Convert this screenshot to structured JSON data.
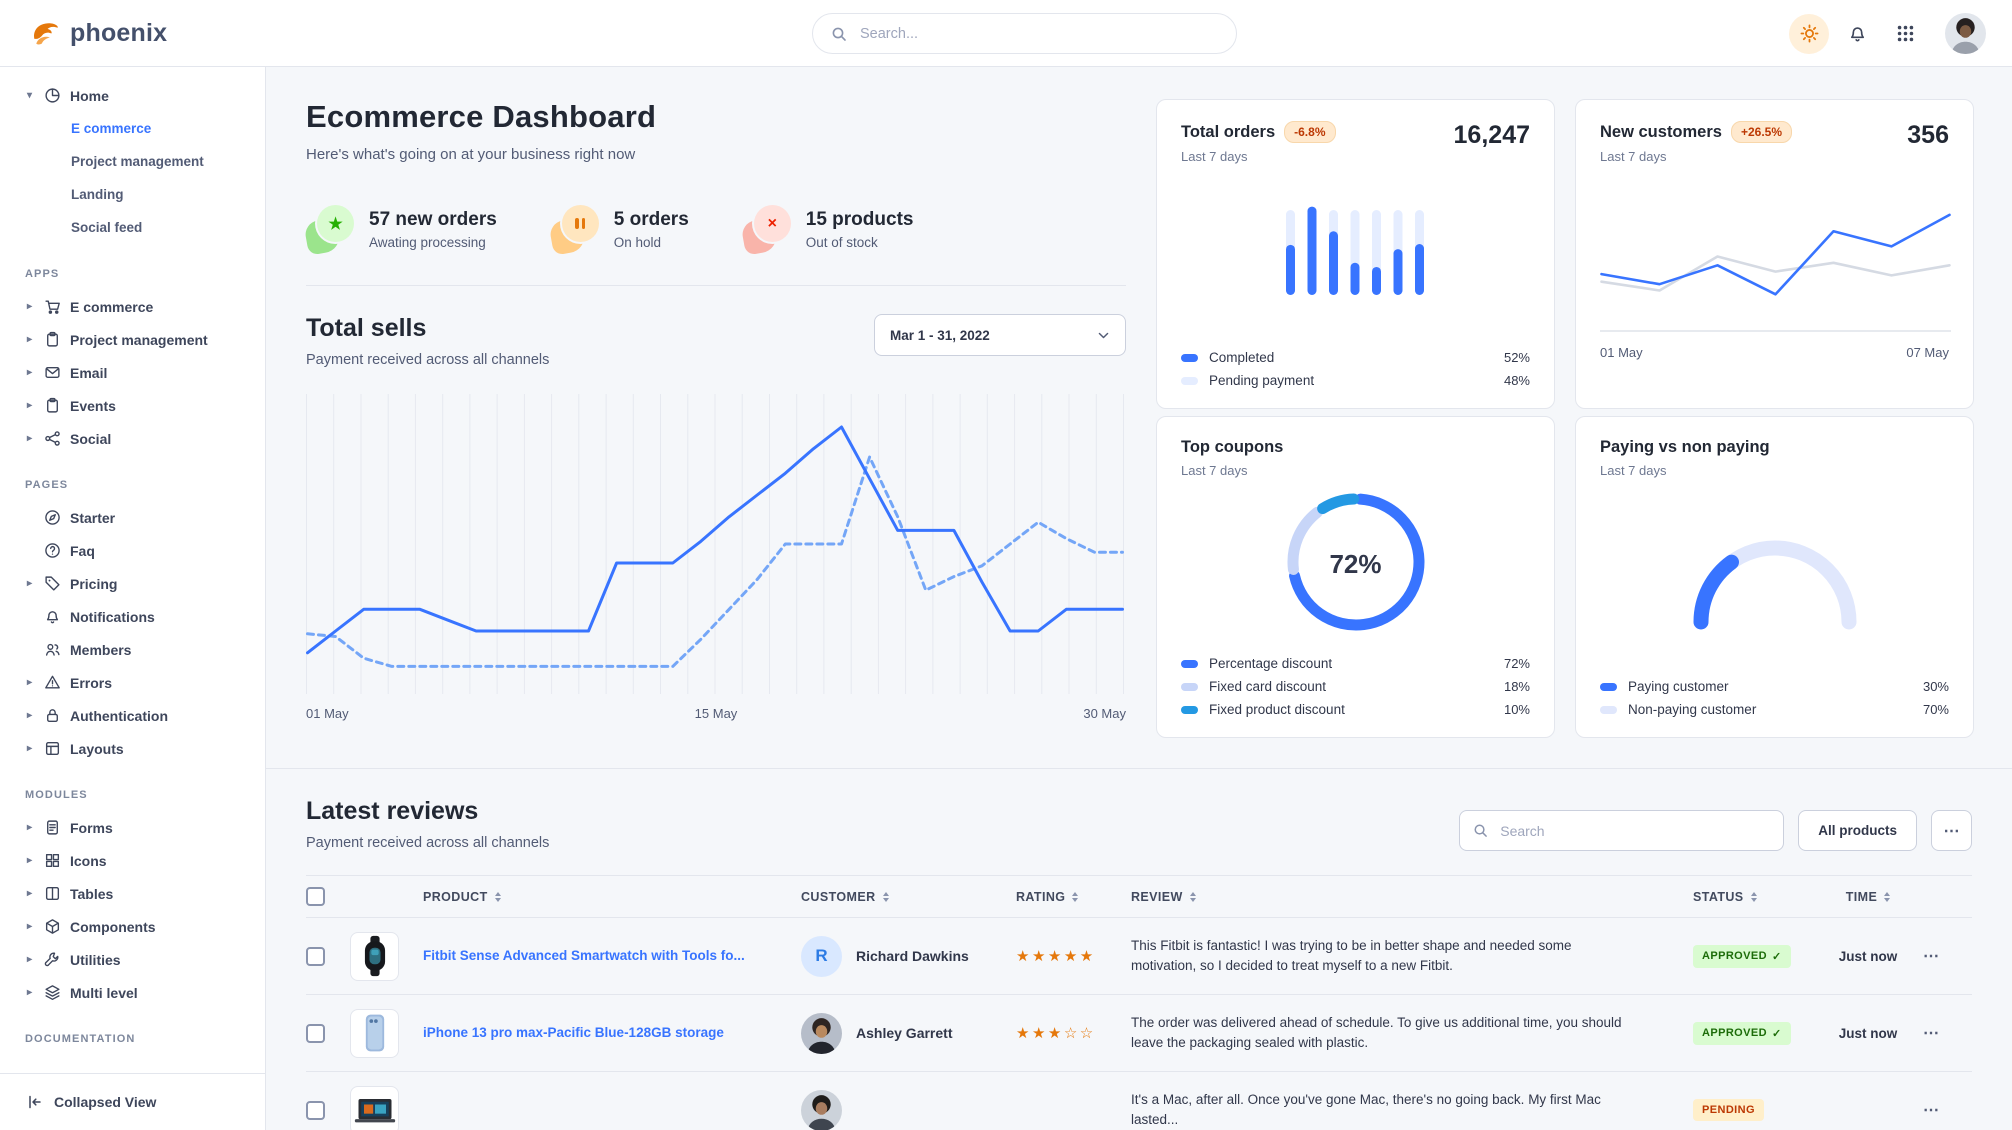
{
  "brand": "phoenix",
  "topnav": {
    "search_placeholder": "Search..."
  },
  "sidebar": {
    "sections": [
      {
        "label": "",
        "items": [
          {
            "label": "Home",
            "icon": "pie-chart",
            "caret": "down",
            "children": [
              {
                "label": "E commerce",
                "active": true
              },
              {
                "label": "Project management",
                "active": false
              },
              {
                "label": "Landing",
                "active": false
              },
              {
                "label": "Social feed",
                "active": false
              }
            ]
          }
        ]
      },
      {
        "label": "APPS",
        "items": [
          {
            "label": "E commerce",
            "icon": "cart",
            "caret": "right"
          },
          {
            "label": "Project management",
            "icon": "clipboard",
            "caret": "right"
          },
          {
            "label": "Email",
            "icon": "mail",
            "caret": "right"
          },
          {
            "label": "Events",
            "icon": "clipboard",
            "caret": "right"
          },
          {
            "label": "Social",
            "icon": "share",
            "caret": "right"
          }
        ]
      },
      {
        "label": "PAGES",
        "items": [
          {
            "label": "Starter",
            "icon": "compass",
            "caret": ""
          },
          {
            "label": "Faq",
            "icon": "help",
            "caret": ""
          },
          {
            "label": "Pricing",
            "icon": "tag",
            "caret": "right"
          },
          {
            "label": "Notifications",
            "icon": "bell",
            "caret": ""
          },
          {
            "label": "Members",
            "icon": "users",
            "caret": ""
          },
          {
            "label": "Errors",
            "icon": "alert",
            "caret": "right"
          },
          {
            "label": "Authentication",
            "icon": "lock",
            "caret": "right"
          },
          {
            "label": "Layouts",
            "icon": "layout",
            "caret": "right"
          }
        ]
      },
      {
        "label": "MODULES",
        "items": [
          {
            "label": "Forms",
            "icon": "file",
            "caret": "right"
          },
          {
            "label": "Icons",
            "icon": "grid",
            "caret": "right"
          },
          {
            "label": "Tables",
            "icon": "columns",
            "caret": "right"
          },
          {
            "label": "Components",
            "icon": "package",
            "caret": "right"
          },
          {
            "label": "Utilities",
            "icon": "tool",
            "caret": "right"
          },
          {
            "label": "Multi level",
            "icon": "layers",
            "caret": "right"
          }
        ]
      },
      {
        "label": "DOCUMENTATION",
        "items": []
      }
    ],
    "footer_label": "Collapsed View"
  },
  "page_header": {
    "title": "Ecommerce Dashboard",
    "subtitle": "Here's what's going on at your business right now"
  },
  "stats": [
    {
      "title": "57 new orders",
      "subtitle": "Awating processing",
      "icon": "star",
      "accent": "#25b003",
      "icon_bg": "#d9fbd0",
      "blob": "#9be48c"
    },
    {
      "title": "5 orders",
      "subtitle": "On hold",
      "icon": "pause",
      "accent": "#e5780b",
      "icon_bg": "#ffe6bf",
      "blob": "#ffcc85"
    },
    {
      "title": "15 products",
      "subtitle": "Out of stock",
      "icon": "x",
      "accent": "#ed2000",
      "icon_bg": "#ffe0db",
      "blob": "#f9b4aa"
    }
  ],
  "total_sells": {
    "title": "Total sells",
    "subtitle": "Payment received across all channels",
    "date_range": "Mar 1 - 31, 2022"
  },
  "cards": {
    "total_orders": {
      "title": "Total orders",
      "badge": "-6.8%",
      "period": "Last 7 days",
      "value": "16,247",
      "legend": [
        {
          "label": "Completed",
          "value": "52%",
          "color": "#3874ff"
        },
        {
          "label": "Pending payment",
          "value": "48%",
          "color": "#e5edff"
        }
      ]
    },
    "new_customers": {
      "title": "New customers",
      "badge": "+26.5%",
      "period": "Last 7 days",
      "value": "356",
      "x_labels": [
        "01 May",
        "07 May"
      ]
    },
    "top_coupons": {
      "title": "Top coupons",
      "period": "Last 7 days",
      "center_label": "72%",
      "legend": [
        {
          "label": "Percentage discount",
          "value": "72%",
          "color": "#3874ff"
        },
        {
          "label": "Fixed card discount",
          "value": "18%",
          "color": "#c7d5f8"
        },
        {
          "label": "Fixed product discount",
          "value": "10%",
          "color": "#2499e3"
        }
      ]
    },
    "paying": {
      "title": "Paying vs non paying",
      "period": "Last 7 days",
      "legend": [
        {
          "label": "Paying customer",
          "value": "30%",
          "color": "#3874ff"
        },
        {
          "label": "Non-paying customer",
          "value": "70%",
          "color": "#e0e7fc"
        }
      ]
    }
  },
  "chart_data": [
    {
      "id": "total-sells",
      "type": "line",
      "ylim": [
        0,
        100
      ],
      "grid": "vertical",
      "x_axis": {
        "labels": [
          "01 May",
          "15 May",
          "30 May"
        ],
        "days": 30
      },
      "series": [
        {
          "name": "current",
          "style": "solid",
          "color": "#3874ff",
          "values": [
            10,
            18,
            26,
            26,
            26,
            22,
            18,
            18,
            18,
            18,
            18,
            43,
            43,
            43,
            51,
            60,
            68,
            76,
            85,
            93,
            74,
            55,
            55,
            55,
            36,
            18,
            18,
            26,
            26,
            26
          ]
        },
        {
          "name": "previous",
          "style": "dashed",
          "color": "#74a6f7",
          "values": [
            17,
            16,
            8,
            5,
            5,
            5,
            5,
            5,
            5,
            5,
            5,
            5,
            5,
            5,
            15,
            26,
            37,
            50,
            50,
            50,
            82,
            60,
            33,
            38,
            42,
            50,
            58,
            52,
            47,
            47
          ]
        }
      ]
    },
    {
      "id": "total-orders",
      "type": "bar",
      "stacked": true,
      "categories": [
        "1",
        "2",
        "3",
        "4",
        "5",
        "6",
        "7"
      ],
      "series": [
        {
          "name": "Completed",
          "color": "#3874ff",
          "values": [
            59,
            104,
            75,
            38,
            33,
            54,
            60
          ]
        },
        {
          "name": "Pending payment",
          "color": "#e5edff",
          "values": [
            41,
            0,
            25,
            62,
            67,
            46,
            40
          ]
        }
      ]
    },
    {
      "id": "new-customers",
      "type": "line",
      "x_axis": {
        "labels": [
          "01 May",
          "07 May"
        ]
      },
      "series": [
        {
          "name": "current",
          "style": "solid",
          "color": "#3874ff",
          "values": [
            38,
            30,
            45,
            22,
            72,
            60,
            85
          ]
        },
        {
          "name": "previous",
          "style": "solid",
          "color": "#d5dae3",
          "values": [
            32,
            25,
            52,
            40,
            47,
            37,
            45
          ]
        }
      ]
    },
    {
      "id": "top-coupons",
      "type": "pie",
      "donut": true,
      "center_label": "72%",
      "slices": [
        {
          "label": "Percentage discount",
          "value": 72,
          "color": "#3874ff"
        },
        {
          "label": "Fixed card discount",
          "value": 18,
          "color": "#c7d5f8"
        },
        {
          "label": "Fixed product discount",
          "value": 10,
          "color": "#2499e3"
        }
      ]
    },
    {
      "id": "paying-gauge",
      "type": "gauge",
      "slices": [
        {
          "label": "Paying customer",
          "value": 30,
          "color": "#3874ff"
        },
        {
          "label": "Non-paying customer",
          "value": 70,
          "color": "#e0e7fc"
        }
      ]
    }
  ],
  "reviews": {
    "title": "Latest reviews",
    "subtitle": "Payment received across all channels",
    "search_placeholder": "Search",
    "all_products_label": "All products",
    "more_label": "⋯",
    "columns": [
      "PRODUCT",
      "CUSTOMER",
      "RATING",
      "REVIEW",
      "STATUS",
      "TIME"
    ],
    "rows": [
      {
        "product": "Fitbit Sense Advanced Smartwatch with Tools fo...",
        "thumb": "smartwatch",
        "customer": "Richard Dawkins",
        "avatar_type": "initial",
        "avatar_text": "R",
        "avatar_variant": "",
        "rating": 5,
        "review": "This Fitbit is fantastic! I was trying to be in better shape and needed some motivation, so I decided to treat myself to a new Fitbit.",
        "status": "APPROVED",
        "time": "Just now"
      },
      {
        "product": "iPhone 13 pro max-Pacific Blue-128GB storage",
        "thumb": "iphone",
        "customer": "Ashley Garrett",
        "avatar_type": "photo",
        "avatar_text": "",
        "avatar_variant": "ashley",
        "rating": 3,
        "review": "The order was delivered ahead of schedule. To give us additional time, you should leave the packaging sealed with plastic.",
        "status": "APPROVED",
        "time": "Just now"
      },
      {
        "product": "",
        "thumb": "macbook",
        "customer": "",
        "avatar_type": "photo",
        "avatar_text": "",
        "avatar_variant": "mac-reviewer",
        "rating": 0,
        "review": "It's a Mac, after all. Once you've gone Mac, there's no going back. My first Mac lasted...",
        "status": "PENDING",
        "time": ""
      }
    ]
  }
}
